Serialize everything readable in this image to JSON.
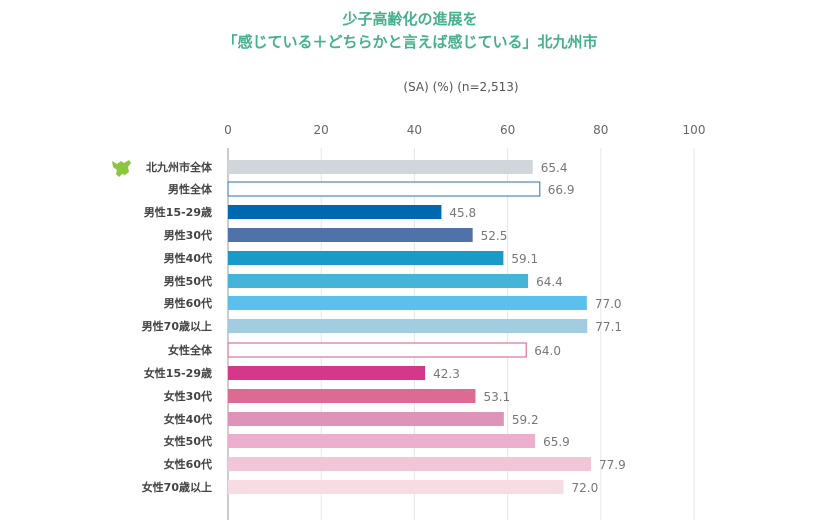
{
  "chart_data": {
    "type": "bar",
    "orientation": "horizontal",
    "title": [
      "少子高齢化の進展を",
      "「感じている＋どちらかと言えば感じている」北九州市"
    ],
    "subtitle": "(SA) (%) (n=2,513)",
    "xlim": [
      0,
      100
    ],
    "ticks": [
      "0",
      "20",
      "40",
      "60",
      "80",
      "100"
    ],
    "tick_values": [
      0,
      20,
      40,
      60,
      80,
      100
    ],
    "grid": true,
    "categories": [
      "北九州市全体",
      "男性全体",
      "男性15-29歳",
      "男性30代",
      "男性40代",
      "男性50代",
      "男性60代",
      "男性70歳以上",
      "女性全体",
      "女性15-29歳",
      "女性30代",
      "女性40代",
      "女性50代",
      "女性60代",
      "女性70歳以上"
    ],
    "values": [
      65.4,
      66.9,
      45.8,
      52.5,
      59.1,
      64.4,
      77.0,
      77.1,
      64.0,
      42.3,
      53.1,
      59.2,
      65.9,
      77.9,
      72.0
    ],
    "labels": [
      "65.4",
      "66.9",
      "45.8",
      "52.5",
      "59.1",
      "64.4",
      "77.0",
      "77.1",
      "64.0",
      "42.3",
      "53.1",
      "59.2",
      "65.9",
      "77.9",
      "72.0"
    ],
    "colors": [
      "#d0d6da",
      "#ffffff",
      "#0068b0",
      "#4f72a8",
      "#1a9ac6",
      "#44b4d8",
      "#5bc0ec",
      "#a2cce0",
      "#ffffff",
      "#d43888",
      "#dc6a92",
      "#de94b8",
      "#ecb0ce",
      "#f0c6d8",
      "#f8dce4"
    ],
    "outline_colors": [
      null,
      "#4a8ac0",
      null,
      null,
      null,
      null,
      null,
      null,
      "#e070a0",
      null,
      null,
      null,
      null,
      null,
      null
    ],
    "icon": "kitakyushu-map-icon"
  }
}
